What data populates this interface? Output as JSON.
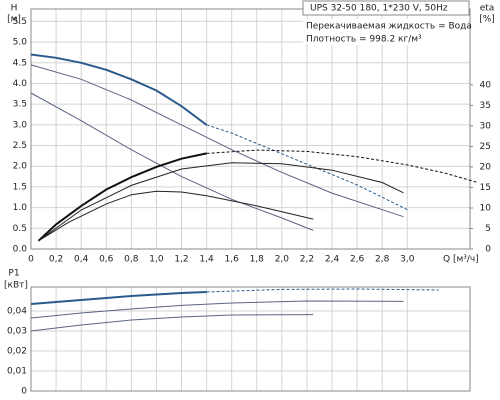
{
  "chart_data": [
    {
      "type": "line",
      "title": "UPS 32-50 180, 1*230 V, 50Hz",
      "annotations": [
        "Перекачиваемая жидкость = Вода",
        "Плотность = 998.2 кг/м³"
      ],
      "y_label": "H",
      "y_unit": "[м]",
      "y2_label": "eta",
      "y2_unit": "[%]",
      "x_label": "Q [м³/ч]",
      "xlim": [
        0,
        3.5
      ],
      "xticks": [
        0,
        {
          "value": 0.2,
          "label": "0,2"
        },
        {
          "value": 0.4,
          "label": "0,4"
        },
        {
          "value": 0.6,
          "label": "0,6"
        },
        {
          "value": 0.8,
          "label": "0,8"
        },
        {
          "value": 1.0,
          "label": "1,0"
        },
        {
          "value": 1.2,
          "label": "1,2"
        },
        {
          "value": 1.4,
          "label": "1,4"
        },
        {
          "value": 1.6,
          "label": "1,6"
        },
        {
          "value": 1.8,
          "label": "1,8"
        },
        {
          "value": 2.0,
          "label": "2,0"
        },
        {
          "value": 2.2,
          "label": "2,2"
        },
        {
          "value": 2.4,
          "label": "2,4"
        },
        {
          "value": 2.6,
          "label": "2,6"
        },
        {
          "value": 2.8,
          "label": "2,8"
        },
        {
          "value": 3.0,
          "label": "3,0"
        }
      ],
      "ylim": [
        0,
        5.8
      ],
      "yticks": [
        {
          "value": 0,
          "label": "0.0"
        },
        0.5,
        {
          "value": 1,
          "label": "1.0"
        },
        1.5,
        {
          "value": 2,
          "label": "2.0"
        },
        2.5,
        {
          "value": 3,
          "label": "3.0"
        },
        3.5,
        {
          "value": 4,
          "label": "4.0"
        },
        4.5,
        {
          "value": 5,
          "label": "5.0"
        },
        5.5
      ],
      "y2lim": [
        0,
        58.5
      ],
      "y2ticks": [
        0,
        5,
        10,
        15,
        20,
        25,
        30,
        35,
        40
      ],
      "grid": true,
      "series": [
        {
          "color": "#2b5b8c",
          "width": 2,
          "solid_until": 1.4,
          "x": [
            0,
            0.2,
            0.4,
            0.6,
            0.8,
            1.0,
            1.2,
            1.4,
            1.6,
            1.8,
            2.0,
            2.2,
            2.4,
            2.6,
            2.8,
            3.0
          ],
          "values": [
            4.7,
            4.62,
            4.5,
            4.33,
            4.1,
            3.83,
            3.45,
            3.0,
            2.8,
            2.55,
            2.3,
            2.05,
            1.8,
            1.55,
            1.25,
            0.95
          ]
        },
        {
          "color": "#5a6482",
          "width": 1,
          "x": [
            0,
            0.4,
            0.8,
            1.2,
            1.6,
            2.0,
            2.4,
            2.8,
            2.97
          ],
          "values": [
            4.45,
            4.1,
            3.6,
            3.0,
            2.4,
            1.85,
            1.35,
            0.95,
            0.78
          ]
        },
        {
          "color": "#5a6482",
          "width": 1,
          "x": [
            0,
            0.4,
            0.8,
            1.2,
            1.6,
            2.0,
            2.25
          ],
          "values": [
            3.77,
            3.1,
            2.4,
            1.75,
            1.2,
            0.75,
            0.45
          ]
        },
        {
          "axis": "y2",
          "color": "#111111",
          "width": 2,
          "solid_until": 1.4,
          "x": [
            0.06,
            0.2,
            0.4,
            0.6,
            0.8,
            1.0,
            1.2,
            1.4,
            1.8,
            2.2,
            2.6,
            3.0,
            3.3,
            3.55
          ],
          "values": [
            2,
            6,
            10.5,
            14.5,
            17.5,
            20,
            22,
            23.3,
            24.1,
            23.8,
            22.5,
            20.5,
            18.5,
            16.3
          ]
        },
        {
          "axis": "y2",
          "color": "#222222",
          "width": 1,
          "x": [
            0.06,
            0.4,
            0.8,
            1.2,
            1.6,
            2.0,
            2.4,
            2.8,
            2.97
          ],
          "values": [
            2,
            9.5,
            15.5,
            19.5,
            21,
            20.8,
            19.2,
            16.2,
            13.7
          ]
        },
        {
          "axis": "y2",
          "color": "#222222",
          "width": 1,
          "x": [
            0.06,
            0.3,
            0.6,
            0.8,
            1.0,
            1.2,
            1.4,
            1.8,
            2.25
          ],
          "values": [
            2,
            6.5,
            11,
            13.2,
            14.1,
            13.9,
            13,
            10.5,
            7.3
          ]
        }
      ]
    },
    {
      "type": "line",
      "y_label": "P1",
      "y_unit": "[кВт]",
      "xlim": [
        0,
        3.5
      ],
      "xticks": [
        0,
        0.2,
        0.4,
        0.6,
        0.8,
        1.0,
        1.2,
        1.4,
        1.6,
        1.8,
        2.0,
        2.2,
        2.4,
        2.6,
        2.8,
        3.0
      ],
      "ylim": [
        0,
        0.052
      ],
      "yticks": [
        0,
        {
          "value": 0.01,
          "label": "0,01"
        },
        {
          "value": 0.02,
          "label": "0,02"
        },
        {
          "value": 0.03,
          "label": "0,03"
        },
        {
          "value": 0.04,
          "label": "0,04"
        }
      ],
      "grid": true,
      "series": [
        {
          "color": "#2b5b8c",
          "width": 2,
          "solid_until": 1.4,
          "x": [
            0,
            0.4,
            0.8,
            1.2,
            1.4,
            2.0,
            2.6,
            3.25
          ],
          "values": [
            0.0435,
            0.0455,
            0.0475,
            0.049,
            0.0495,
            0.0508,
            0.051,
            0.0505
          ]
        },
        {
          "color": "#5a6482",
          "width": 1,
          "x": [
            0,
            0.4,
            0.8,
            1.2,
            1.6,
            2.2,
            2.97
          ],
          "values": [
            0.0365,
            0.039,
            0.041,
            0.0428,
            0.044,
            0.045,
            0.0448
          ]
        },
        {
          "color": "#5a6482",
          "width": 1,
          "x": [
            0,
            0.4,
            0.8,
            1.2,
            1.6,
            2.25
          ],
          "values": [
            0.03,
            0.033,
            0.0355,
            0.037,
            0.038,
            0.0382
          ]
        }
      ]
    }
  ]
}
